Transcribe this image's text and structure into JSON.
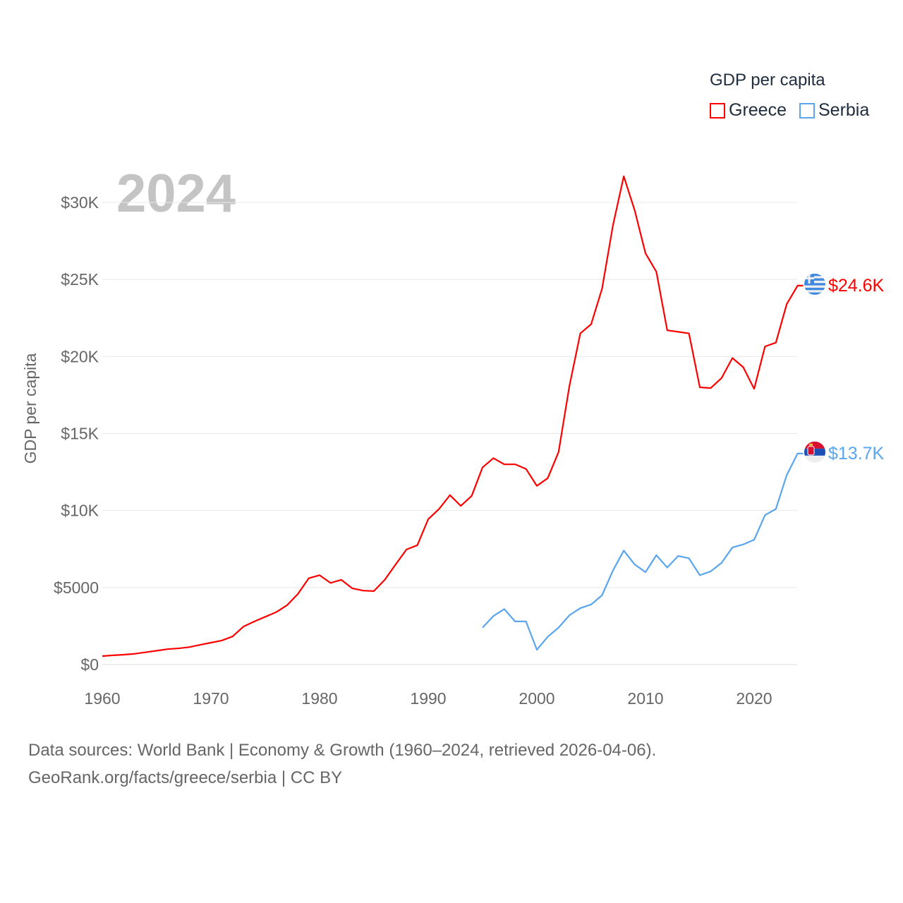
{
  "legend": {
    "title": "GDP per capita"
  },
  "footer": {
    "line1": "Data sources: World Bank | Economy & Growth (1960–2024, retrieved 2026-04-06).",
    "line2": "GeoRank.org/facts/greece/serbia | CC BY"
  },
  "chart_data": {
    "type": "line",
    "title": "GDP per capita",
    "year_label": "2024",
    "xlabel": "",
    "ylabel": "GDP per capita",
    "xlim": [
      1960,
      2024
    ],
    "ylim": [
      0,
      32000
    ],
    "x_ticks": [
      1960,
      1970,
      1980,
      1990,
      2000,
      2010,
      2020
    ],
    "y_ticks": [
      0,
      5000,
      10000,
      15000,
      20000,
      25000,
      30000
    ],
    "y_tick_labels": [
      "$0",
      "$5000",
      "$10K",
      "$15K",
      "$20K",
      "$25K",
      "$30K"
    ],
    "grid": true,
    "legend_position": "top-right",
    "series": [
      {
        "name": "Greece",
        "color": "#ff0000",
        "end_label": "$24.6K",
        "flag": "greece-flag",
        "x_start": 1960,
        "values": [
          550,
          600,
          640,
          700,
          800,
          900,
          1000,
          1050,
          1130,
          1280,
          1420,
          1560,
          1830,
          2470,
          2800,
          3100,
          3400,
          3850,
          4580,
          5600,
          5800,
          5300,
          5500,
          4950,
          4800,
          4770,
          5500,
          6500,
          7470,
          7750,
          9440,
          10100,
          11000,
          10300,
          10950,
          12800,
          13400,
          13000,
          13000,
          12700,
          11600,
          12100,
          13800,
          18100,
          21500,
          22100,
          24400,
          28500,
          31700,
          29500,
          26700,
          25500,
          21700,
          21600,
          21500,
          18000,
          17950,
          18600,
          19900,
          19300,
          17900,
          20650,
          20900,
          23400,
          24600
        ]
      },
      {
        "name": "Serbia",
        "color": "#5aa5ee",
        "end_label": "$13.7K",
        "flag": "serbia-flag",
        "x_start": 1995,
        "values": [
          2400,
          3150,
          3600,
          2800,
          2800,
          960,
          1800,
          2400,
          3200,
          3660,
          3900,
          4500,
          6100,
          7400,
          6500,
          6000,
          7100,
          6300,
          7050,
          6900,
          5800,
          6050,
          6600,
          7600,
          7800,
          8100,
          9700,
          10100,
          12300,
          13700
        ]
      }
    ]
  }
}
